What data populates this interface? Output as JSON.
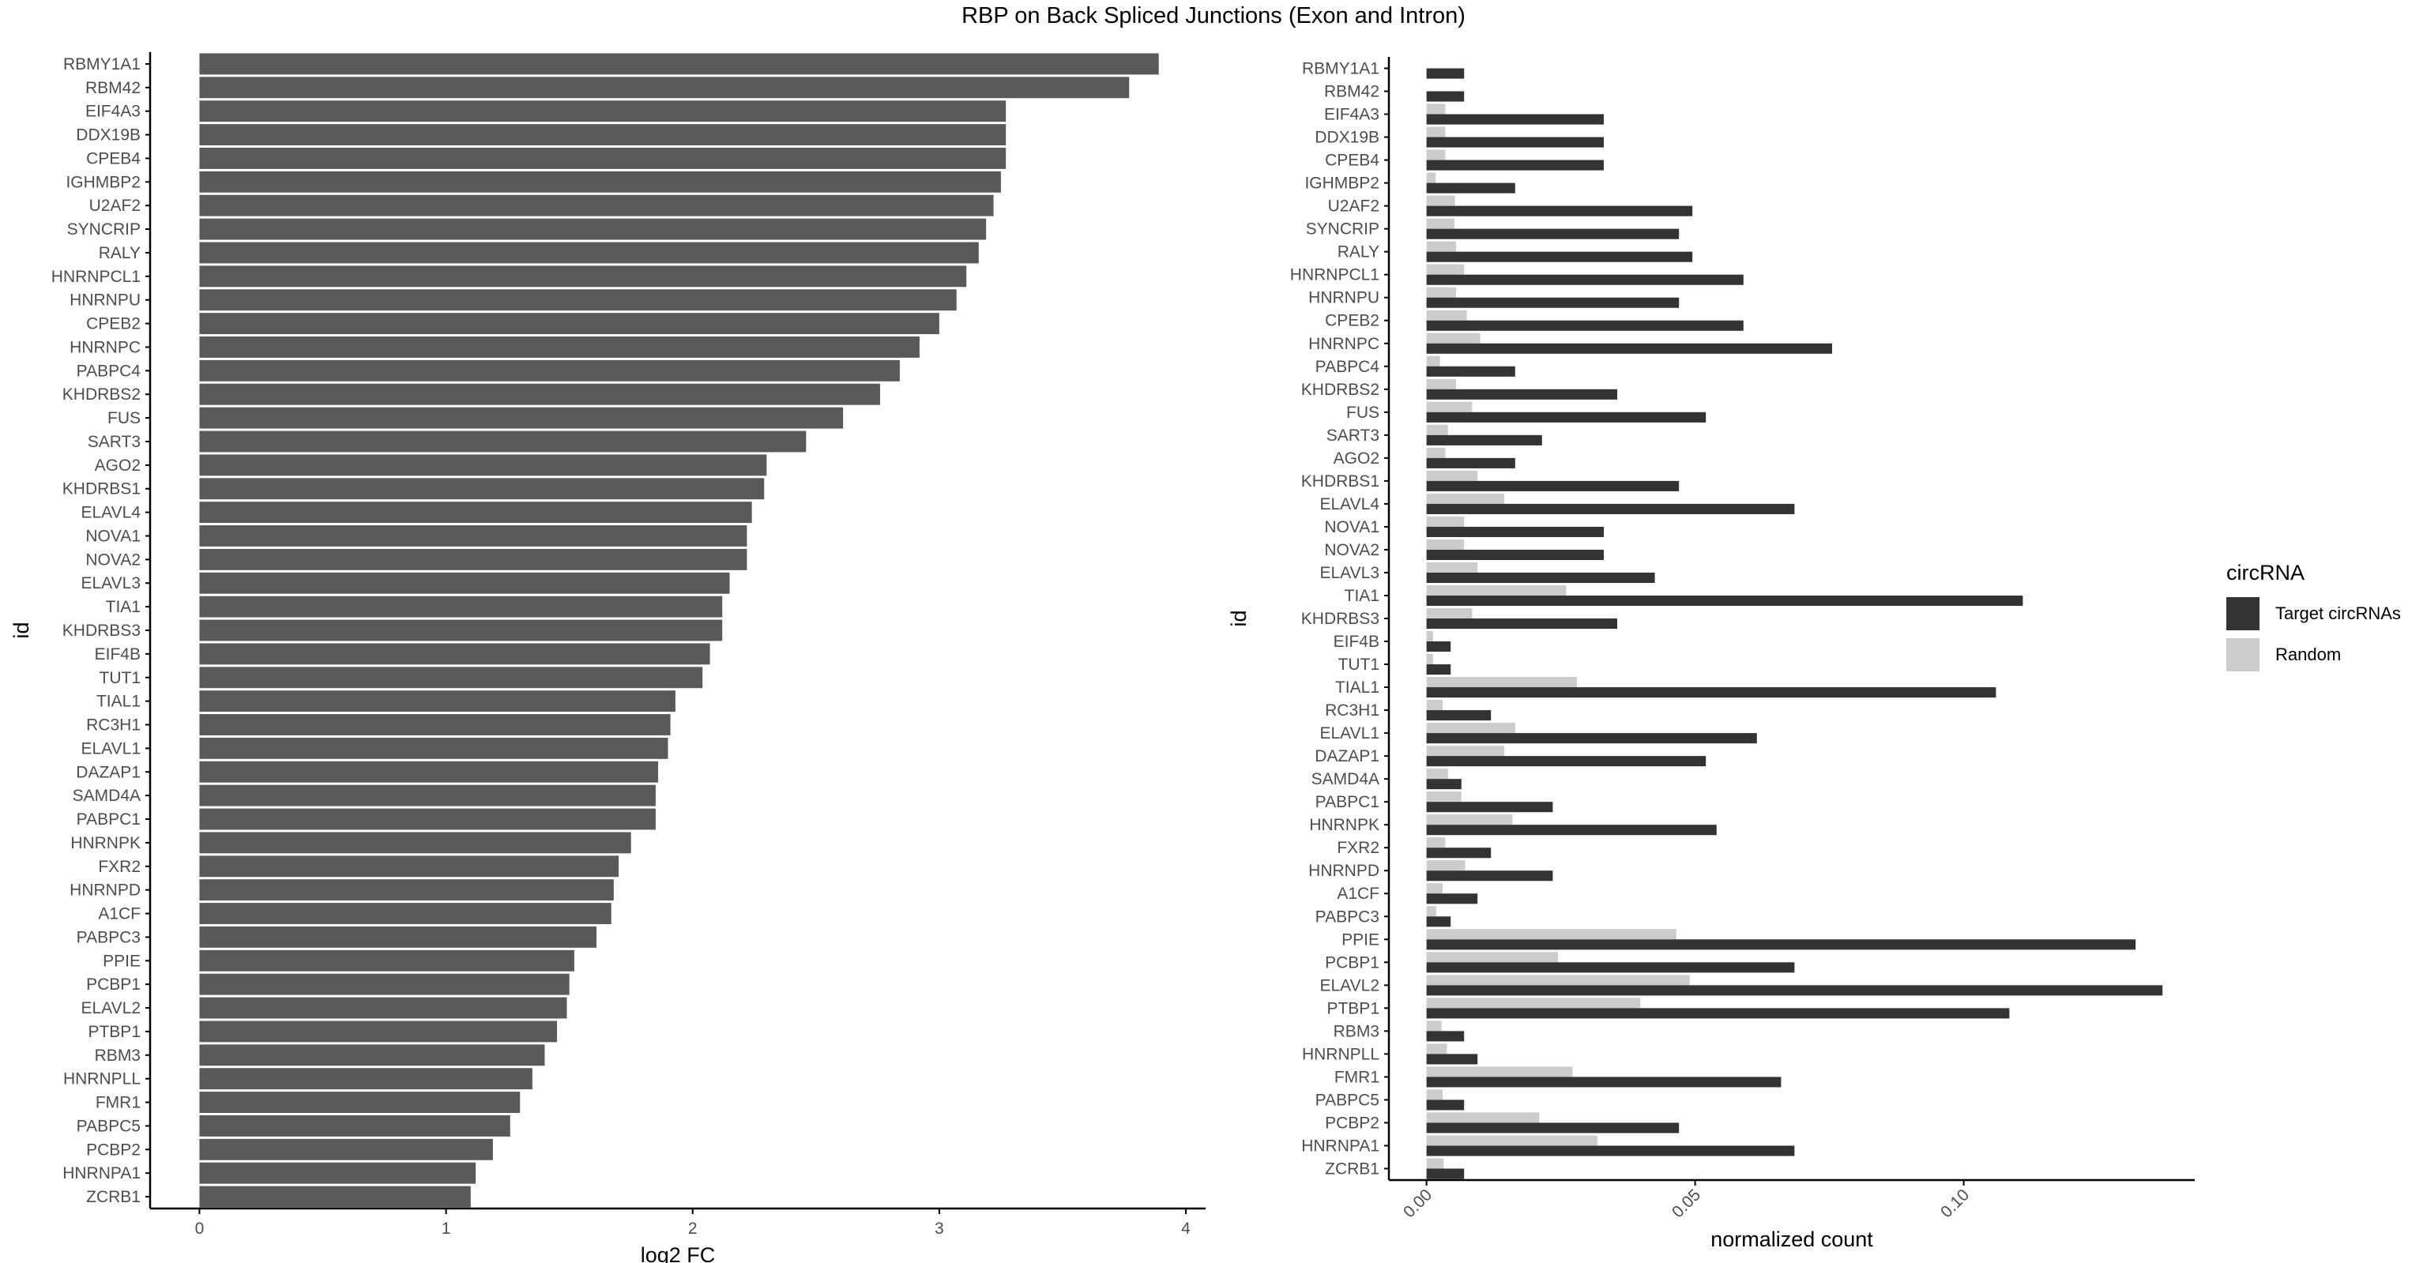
{
  "title": "RBP on Back Spliced Junctions (Exon and Intron)",
  "colors": {
    "left_bar": "#595959",
    "target": "#333333",
    "random": "#cccccc",
    "axis": "#000000",
    "tick_text": "#4d4d4d"
  },
  "legend": {
    "title": "circRNA",
    "position": "right",
    "items": [
      {
        "label": "Target circRNAs",
        "color": "#333333"
      },
      {
        "label": "Random",
        "color": "#cccccc"
      }
    ]
  },
  "chart_data": [
    {
      "type": "bar",
      "orientation": "horizontal",
      "xlabel": "log2 FC",
      "ylabel": "id",
      "xlim": [
        -0.2,
        4.08
      ],
      "xticks": [
        "0",
        "1",
        "2",
        "3",
        "4"
      ],
      "grid": false,
      "categories": [
        "RBMY1A1",
        "RBM42",
        "EIF4A3",
        "DDX19B",
        "CPEB4",
        "IGHMBP2",
        "U2AF2",
        "SYNCRIP",
        "RALY",
        "HNRNPCL1",
        "HNRNPU",
        "CPEB2",
        "HNRNPC",
        "PABPC4",
        "KHDRBS2",
        "FUS",
        "SART3",
        "AGO2",
        "KHDRBS1",
        "ELAVL4",
        "NOVA1",
        "NOVA2",
        "ELAVL3",
        "TIA1",
        "KHDRBS3",
        "EIF4B",
        "TUT1",
        "TIAL1",
        "RC3H1",
        "ELAVL1",
        "DAZAP1",
        "SAMD4A",
        "PABPC1",
        "HNRNPK",
        "FXR2",
        "HNRNPD",
        "A1CF",
        "PABPC3",
        "PPIE",
        "PCBP1",
        "ELAVL2",
        "PTBP1",
        "RBM3",
        "HNRNPLL",
        "FMR1",
        "PABPC5",
        "PCBP2",
        "HNRNPA1",
        "ZCRB1"
      ],
      "values": [
        3.89,
        3.77,
        3.27,
        3.27,
        3.27,
        3.25,
        3.22,
        3.19,
        3.16,
        3.11,
        3.07,
        3.0,
        2.92,
        2.84,
        2.76,
        2.61,
        2.46,
        2.3,
        2.29,
        2.24,
        2.22,
        2.22,
        2.15,
        2.12,
        2.12,
        2.07,
        2.04,
        1.93,
        1.91,
        1.9,
        1.86,
        1.85,
        1.85,
        1.75,
        1.7,
        1.68,
        1.67,
        1.61,
        1.52,
        1.5,
        1.49,
        1.45,
        1.4,
        1.35,
        1.3,
        1.26,
        1.19,
        1.12,
        1.1
      ]
    },
    {
      "type": "bar",
      "orientation": "horizontal",
      "xlabel": "normalized count",
      "ylabel": "id",
      "xlim": [
        -0.007,
        0.143
      ],
      "xticks": [
        "0.00",
        "0.05",
        "0.10"
      ],
      "grid": false,
      "categories": [
        "RBMY1A1",
        "RBM42",
        "EIF4A3",
        "DDX19B",
        "CPEB4",
        "IGHMBP2",
        "U2AF2",
        "SYNCRIP",
        "RALY",
        "HNRNPCL1",
        "HNRNPU",
        "CPEB2",
        "HNRNPC",
        "PABPC4",
        "KHDRBS2",
        "FUS",
        "SART3",
        "AGO2",
        "KHDRBS1",
        "ELAVL4",
        "NOVA1",
        "NOVA2",
        "ELAVL3",
        "TIA1",
        "KHDRBS3",
        "EIF4B",
        "TUT1",
        "TIAL1",
        "RC3H1",
        "ELAVL1",
        "DAZAP1",
        "SAMD4A",
        "PABPC1",
        "HNRNPK",
        "FXR2",
        "HNRNPD",
        "A1CF",
        "PABPC3",
        "PPIE",
        "PCBP1",
        "ELAVL2",
        "PTBP1",
        "RBM3",
        "HNRNPLL",
        "FMR1",
        "PABPC5",
        "PCBP2",
        "HNRNPA1",
        "ZCRB1"
      ],
      "series": [
        {
          "name": "Target circRNAs",
          "values": [
            0.007,
            0.007,
            0.033,
            0.033,
            0.033,
            0.0165,
            0.0495,
            0.047,
            0.0495,
            0.059,
            0.047,
            0.059,
            0.0755,
            0.0165,
            0.0355,
            0.052,
            0.0215,
            0.0165,
            0.047,
            0.0685,
            0.033,
            0.033,
            0.0425,
            0.111,
            0.0355,
            0.0045,
            0.0045,
            0.106,
            0.012,
            0.0615,
            0.052,
            0.0065,
            0.0235,
            0.054,
            0.012,
            0.0235,
            0.0095,
            0.0045,
            0.132,
            0.0685,
            0.137,
            0.1085,
            0.007,
            0.0095,
            0.066,
            0.007,
            0.047,
            0.0685,
            0.007
          ]
        },
        {
          "name": "Random",
          "values": [
            0.0,
            0.0,
            0.0035,
            0.0035,
            0.0035,
            0.0017,
            0.0053,
            0.0052,
            0.0055,
            0.007,
            0.0055,
            0.0075,
            0.01,
            0.0025,
            0.0055,
            0.0085,
            0.004,
            0.0035,
            0.0095,
            0.0145,
            0.007,
            0.007,
            0.0095,
            0.026,
            0.0085,
            0.0012,
            0.0012,
            0.028,
            0.003,
            0.0165,
            0.0145,
            0.004,
            0.0065,
            0.016,
            0.0035,
            0.0072,
            0.003,
            0.0018,
            0.0465,
            0.0245,
            0.049,
            0.0398,
            0.0028,
            0.0038,
            0.0272,
            0.003,
            0.021,
            0.0318,
            0.0032
          ]
        }
      ]
    }
  ]
}
